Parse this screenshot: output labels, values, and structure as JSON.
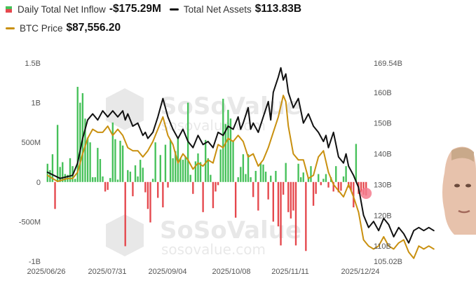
{
  "legend": {
    "flow_label": "Daily Total Net Inflow",
    "flow_value": "-$175.29M",
    "assets_label": "Total Net Assets",
    "assets_value": "$113.83B",
    "btc_label": "BTC Price",
    "btc_value": "$87,556.20"
  },
  "watermark": {
    "brand": "SoSoValue",
    "url": "sosovalue.com"
  },
  "colors": {
    "inflow_positive": "#46c15a",
    "inflow_negative": "#e5484d",
    "net_assets_line": "#111111",
    "btc_price_line": "#c9900f",
    "marker": "#f47c8e"
  },
  "chart_data": {
    "type": "bar",
    "x_tick_labels": [
      "2025/06/26",
      "2025/07/31",
      "2025/09/04",
      "2025/10/08",
      "2025/11/11",
      "2025/12/24"
    ],
    "left_axis": {
      "tick_labels": [
        "1.5B",
        "1B",
        "500M",
        "0",
        "-500M",
        "-1B"
      ],
      "ylim": [
        -1000,
        1500
      ],
      "unit": "USD millions"
    },
    "right_axis": {
      "tick_labels": [
        "169.54B",
        "160B",
        "150B",
        "140B",
        "130B",
        "120B",
        "110B",
        "105.02B"
      ],
      "ylim": [
        105.02,
        169.54
      ],
      "unit": "USD billions"
    },
    "series": [
      {
        "name": "Daily Total Net Inflow",
        "kind": "bar",
        "axis": "left",
        "values": [
          230,
          150,
          350,
          -340,
          720,
          190,
          250,
          100,
          90,
          300,
          200,
          40,
          1200,
          1000,
          1120,
          800,
          560,
          500,
          60,
          60,
          430,
          290,
          70,
          -120,
          -100,
          50,
          750,
          540,
          30,
          520,
          460,
          -810,
          150,
          130,
          -180,
          210,
          70,
          280,
          180,
          -130,
          -340,
          -510,
          40,
          500,
          -200,
          340,
          -320,
          470,
          -70,
          530,
          300,
          390,
          560,
          300,
          280,
          320,
          1000,
          90,
          -150,
          260,
          360,
          250,
          -380,
          530,
          300,
          90,
          -330,
          -120,
          -40,
          410,
          1050,
          730,
          910,
          800,
          520,
          -450,
          60,
          190,
          350,
          100,
          350,
          60,
          -190,
          140,
          -360,
          240,
          220,
          130,
          -220,
          80,
          -500,
          140,
          -560,
          -800,
          -160,
          240,
          -380,
          -460,
          -360,
          -800,
          230,
          60,
          120,
          -870,
          60,
          200,
          -300,
          -150,
          100,
          -40,
          40,
          100,
          -70,
          60,
          -120,
          200,
          -130,
          -110,
          70,
          200,
          -70,
          -110,
          -320,
          480,
          -150,
          -130,
          -160,
          -170
        ]
      },
      {
        "name": "Total Net Assets",
        "kind": "line",
        "axis": "right",
        "values": [
          [
            0,
            134
          ],
          [
            5,
            132
          ],
          [
            10,
            133
          ],
          [
            12,
            137
          ],
          [
            14,
            145
          ],
          [
            16,
            151
          ],
          [
            18,
            153
          ],
          [
            20,
            151
          ],
          [
            22,
            154
          ],
          [
            24,
            152
          ],
          [
            26,
            154
          ],
          [
            28,
            152
          ],
          [
            30,
            154
          ],
          [
            31,
            151
          ],
          [
            32,
            153
          ],
          [
            34,
            149
          ],
          [
            36,
            150
          ],
          [
            38,
            146
          ],
          [
            39,
            147
          ],
          [
            40,
            145
          ],
          [
            42,
            147
          ],
          [
            44,
            152
          ],
          [
            46,
            158
          ],
          [
            48,
            152
          ],
          [
            50,
            148
          ],
          [
            52,
            145
          ],
          [
            54,
            148
          ],
          [
            56,
            144
          ],
          [
            58,
            142
          ],
          [
            60,
            146
          ],
          [
            62,
            143
          ],
          [
            64,
            144
          ],
          [
            66,
            142
          ],
          [
            68,
            147
          ],
          [
            70,
            146
          ],
          [
            72,
            149
          ],
          [
            74,
            148
          ],
          [
            76,
            152
          ],
          [
            77,
            148
          ],
          [
            78,
            150
          ],
          [
            80,
            155
          ],
          [
            81,
            148
          ],
          [
            82,
            150
          ],
          [
            84,
            147
          ],
          [
            86,
            152
          ],
          [
            88,
            157
          ],
          [
            89,
            151
          ],
          [
            90,
            160
          ],
          [
            92,
            165
          ],
          [
            93,
            168
          ],
          [
            94,
            164
          ],
          [
            95,
            166
          ],
          [
            96,
            160
          ],
          [
            98,
            155
          ],
          [
            100,
            158
          ],
          [
            102,
            150
          ],
          [
            104,
            153
          ],
          [
            106,
            149
          ],
          [
            108,
            147
          ],
          [
            110,
            144
          ],
          [
            111,
            146
          ],
          [
            112,
            142
          ],
          [
            114,
            147
          ],
          [
            116,
            139
          ],
          [
            118,
            137
          ],
          [
            119,
            140
          ],
          [
            120,
            136
          ],
          [
            122,
            133
          ],
          [
            124,
            129
          ],
          [
            126,
            120
          ],
          [
            128,
            116
          ],
          [
            130,
            118
          ],
          [
            132,
            115
          ],
          [
            134,
            119
          ],
          [
            136,
            117
          ],
          [
            138,
            113
          ],
          [
            140,
            116
          ],
          [
            142,
            114
          ],
          [
            144,
            111
          ],
          [
            146,
            115
          ],
          [
            148,
            116
          ],
          [
            150,
            115
          ],
          [
            152,
            116
          ],
          [
            154,
            115
          ]
        ]
      },
      {
        "name": "BTC Price",
        "kind": "line",
        "axis": "right",
        "values": [
          [
            0,
            133
          ],
          [
            4,
            131
          ],
          [
            8,
            132
          ],
          [
            10,
            132
          ],
          [
            12,
            134
          ],
          [
            14,
            140
          ],
          [
            16,
            145
          ],
          [
            18,
            148
          ],
          [
            20,
            147
          ],
          [
            22,
            147
          ],
          [
            24,
            149
          ],
          [
            26,
            146
          ],
          [
            28,
            148
          ],
          [
            30,
            146
          ],
          [
            32,
            142
          ],
          [
            34,
            141
          ],
          [
            36,
            141
          ],
          [
            38,
            139
          ],
          [
            40,
            141
          ],
          [
            42,
            144
          ],
          [
            44,
            148
          ],
          [
            46,
            152
          ],
          [
            48,
            146
          ],
          [
            50,
            143
          ],
          [
            52,
            137
          ],
          [
            54,
            140
          ],
          [
            56,
            138
          ],
          [
            58,
            135
          ],
          [
            60,
            137
          ],
          [
            62,
            136
          ],
          [
            64,
            138
          ],
          [
            66,
            137
          ],
          [
            68,
            143
          ],
          [
            70,
            142
          ],
          [
            72,
            145
          ],
          [
            74,
            144
          ],
          [
            76,
            146
          ],
          [
            78,
            144
          ],
          [
            80,
            139
          ],
          [
            82,
            140
          ],
          [
            84,
            136
          ],
          [
            86,
            138
          ],
          [
            88,
            142
          ],
          [
            90,
            147
          ],
          [
            92,
            152
          ],
          [
            94,
            159
          ],
          [
            95,
            157
          ],
          [
            96,
            149
          ],
          [
            98,
            140
          ],
          [
            100,
            138
          ],
          [
            102,
            138
          ],
          [
            104,
            132
          ],
          [
            106,
            133
          ],
          [
            108,
            139
          ],
          [
            110,
            141
          ],
          [
            112,
            134
          ],
          [
            114,
            130
          ],
          [
            116,
            128
          ],
          [
            118,
            126
          ],
          [
            120,
            130
          ],
          [
            122,
            126
          ],
          [
            124,
            121
          ],
          [
            126,
            112
          ],
          [
            128,
            110
          ],
          [
            130,
            109
          ],
          [
            132,
            110
          ],
          [
            134,
            113
          ],
          [
            136,
            110
          ],
          [
            138,
            109
          ],
          [
            140,
            111
          ],
          [
            142,
            112
          ],
          [
            144,
            108
          ],
          [
            146,
            106
          ],
          [
            148,
            110
          ],
          [
            150,
            109
          ],
          [
            152,
            110
          ],
          [
            154,
            109
          ]
        ]
      }
    ],
    "grid": false,
    "legend_position": "top-left"
  }
}
